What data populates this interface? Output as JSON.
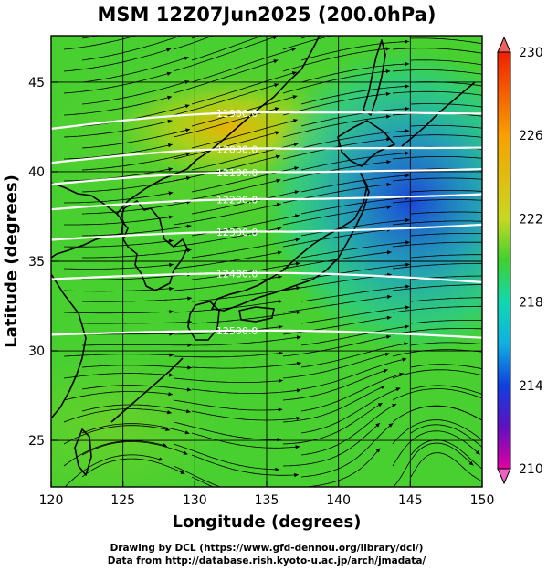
{
  "title": "MSM 12Z07Jun2025 (200.0hPa)",
  "xaxis": {
    "label": "Longitude (degrees)",
    "ticks": [
      "120",
      "125",
      "130",
      "135",
      "140",
      "145",
      "150"
    ],
    "range": [
      120,
      150
    ]
  },
  "yaxis": {
    "label": "Latitude  (degrees)",
    "ticks": [
      "25",
      "30",
      "35",
      "40",
      "45"
    ],
    "range": [
      22.4,
      47.6
    ]
  },
  "colorbar": {
    "ticks": [
      "230",
      "226",
      "222",
      "218",
      "214",
      "210"
    ],
    "range": [
      210,
      230
    ],
    "colors": [
      "#e000a0",
      "#6010c0",
      "#1040e0",
      "#10b0e0",
      "#10d8b0",
      "#20d050",
      "#60d020",
      "#c8d820",
      "#f8a000",
      "#f02000"
    ]
  },
  "contours": [
    {
      "label": "11900.0",
      "lat": 42.4
    },
    {
      "label": "12000.0",
      "lat": 40.5
    },
    {
      "label": "12100.0",
      "lat": 39.3
    },
    {
      "label": "12200.0",
      "lat": 37.9
    },
    {
      "label": "12300.0",
      "lat": 36.2
    },
    {
      "label": "12400.0",
      "lat": 34.0
    },
    {
      "label": "12500.0",
      "lat": 30.9
    }
  ],
  "credits": [
    "Drawing by DCL (https://www.gfd-dennou.org/library/dcl/)",
    "Data from http://database.rish.kyoto-u.ac.jp/arch/jmadata/"
  ]
}
